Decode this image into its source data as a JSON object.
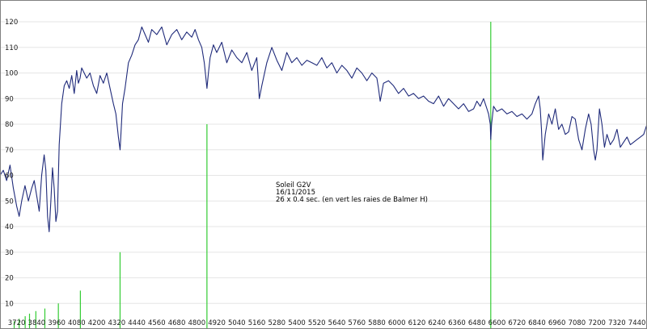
{
  "chart_data": {
    "type": "line",
    "title": "",
    "xlabel": "",
    "ylabel": "",
    "xlim": [
      3620,
      7500
    ],
    "ylim": [
      0,
      126
    ],
    "x_ticks": [
      3720,
      3840,
      3960,
      4080,
      4200,
      4320,
      4440,
      4560,
      4680,
      4800,
      4920,
      5040,
      5160,
      5280,
      5400,
      5520,
      5640,
      5760,
      5880,
      6000,
      6120,
      6240,
      6360,
      6480,
      6600,
      6720,
      6840,
      6960,
      7080,
      7200,
      7320,
      7440
    ],
    "y_ticks": [
      10,
      20,
      30,
      40,
      50,
      60,
      70,
      80,
      90,
      100,
      110,
      120
    ],
    "grid": "horizontal",
    "colors": {
      "spectrum": "#1f2a7a",
      "balmer": "#33cc33",
      "grid": "#e6e6e6"
    },
    "annotation": [
      "Soleil G2V",
      "16/11/2015",
      "26 x 0.4 sec. (en vert les raies de Balmer H)"
    ],
    "balmer_lines": [
      {
        "x": 3705,
        "y": 3
      },
      {
        "x": 3735,
        "y": 4
      },
      {
        "x": 3771,
        "y": 5
      },
      {
        "x": 3797,
        "y": 6
      },
      {
        "x": 3835,
        "y": 7
      },
      {
        "x": 3889,
        "y": 8
      },
      {
        "x": 3970,
        "y": 10
      },
      {
        "x": 4102,
        "y": 15
      },
      {
        "x": 4340,
        "y": 30
      },
      {
        "x": 4861,
        "y": 80
      },
      {
        "x": 6563,
        "y": 120
      }
    ],
    "series": [
      {
        "x": [
          3620,
          3640,
          3660,
          3680,
          3700,
          3720,
          3735,
          3750,
          3770,
          3790,
          3810,
          3825,
          3840,
          3855,
          3870,
          3885,
          3895,
          3905,
          3915,
          3925,
          3935,
          3945,
          3955,
          3965,
          3975,
          3990,
          4005,
          4020,
          4035,
          4050,
          4065,
          4080,
          4090,
          4100,
          4110,
          4125,
          4140,
          4160,
          4180,
          4200,
          4220,
          4240,
          4260,
          4280,
          4300,
          4315,
          4330,
          4340,
          4355,
          4370,
          4390,
          4410,
          4430,
          4450,
          4470,
          4490,
          4510,
          4530,
          4560,
          4590,
          4620,
          4650,
          4680,
          4710,
          4740,
          4770,
          4790,
          4810,
          4830,
          4845,
          4855,
          4861,
          4870,
          4880,
          4900,
          4920,
          4950,
          4980,
          5010,
          5040,
          5070,
          5100,
          5130,
          5160,
          5167,
          5175,
          5190,
          5220,
          5250,
          5280,
          5310,
          5340,
          5370,
          5400,
          5430,
          5460,
          5490,
          5520,
          5550,
          5580,
          5610,
          5640,
          5670,
          5700,
          5730,
          5760,
          5790,
          5820,
          5850,
          5880,
          5890,
          5900,
          5920,
          5950,
          5980,
          6010,
          6040,
          6070,
          6100,
          6130,
          6160,
          6190,
          6220,
          6250,
          6280,
          6310,
          6340,
          6370,
          6400,
          6430,
          6460,
          6480,
          6500,
          6520,
          6540,
          6550,
          6560,
          6563,
          6568,
          6580,
          6600,
          6630,
          6660,
          6690,
          6720,
          6750,
          6780,
          6810,
          6830,
          6850,
          6860,
          6867,
          6875,
          6890,
          6910,
          6930,
          6950,
          6970,
          6990,
          7010,
          7030,
          7050,
          7070,
          7090,
          7110,
          7130,
          7150,
          7165,
          7180,
          7190,
          7200,
          7215,
          7230,
          7245,
          7260,
          7280,
          7300,
          7320,
          7340,
          7360,
          7380,
          7400,
          7420,
          7440,
          7460,
          7480,
          7500
        ],
        "y": [
          60,
          62,
          58,
          64,
          55,
          48,
          44,
          50,
          56,
          50,
          55,
          58,
          52,
          46,
          60,
          68,
          62,
          44,
          38,
          50,
          63,
          55,
          42,
          46,
          72,
          88,
          95,
          97,
          94,
          99,
          92,
          101,
          96,
          98,
          102,
          100,
          98,
          100,
          95,
          92,
          99,
          96,
          100,
          94,
          88,
          84,
          75,
          70,
          88,
          94,
          104,
          107,
          111,
          113,
          118,
          115,
          112,
          117,
          115,
          118,
          111,
          115,
          117,
          113,
          116,
          114,
          117,
          113,
          110,
          104,
          98,
          94,
          100,
          106,
          111,
          108,
          112,
          104,
          109,
          106,
          104,
          108,
          101,
          106,
          99,
          90,
          95,
          104,
          110,
          105,
          101,
          108,
          104,
          106,
          103,
          105,
          104,
          103,
          106,
          102,
          104,
          100,
          103,
          101,
          98,
          102,
          100,
          97,
          100,
          98,
          94,
          89,
          96,
          97,
          95,
          92,
          94,
          91,
          92,
          90,
          91,
          89,
          88,
          91,
          87,
          90,
          88,
          86,
          88,
          85,
          86,
          89,
          87,
          90,
          86,
          84,
          80,
          74,
          80,
          87,
          85,
          86,
          84,
          85,
          83,
          84,
          82,
          84,
          88,
          91,
          86,
          78,
          66,
          76,
          84,
          80,
          86,
          78,
          80,
          76,
          77,
          83,
          82,
          74,
          70,
          78,
          84,
          80,
          70,
          66,
          70,
          86,
          80,
          71,
          76,
          72,
          74,
          78,
          71,
          73,
          75,
          72,
          73,
          74,
          75,
          76,
          80
        ]
      }
    ]
  }
}
